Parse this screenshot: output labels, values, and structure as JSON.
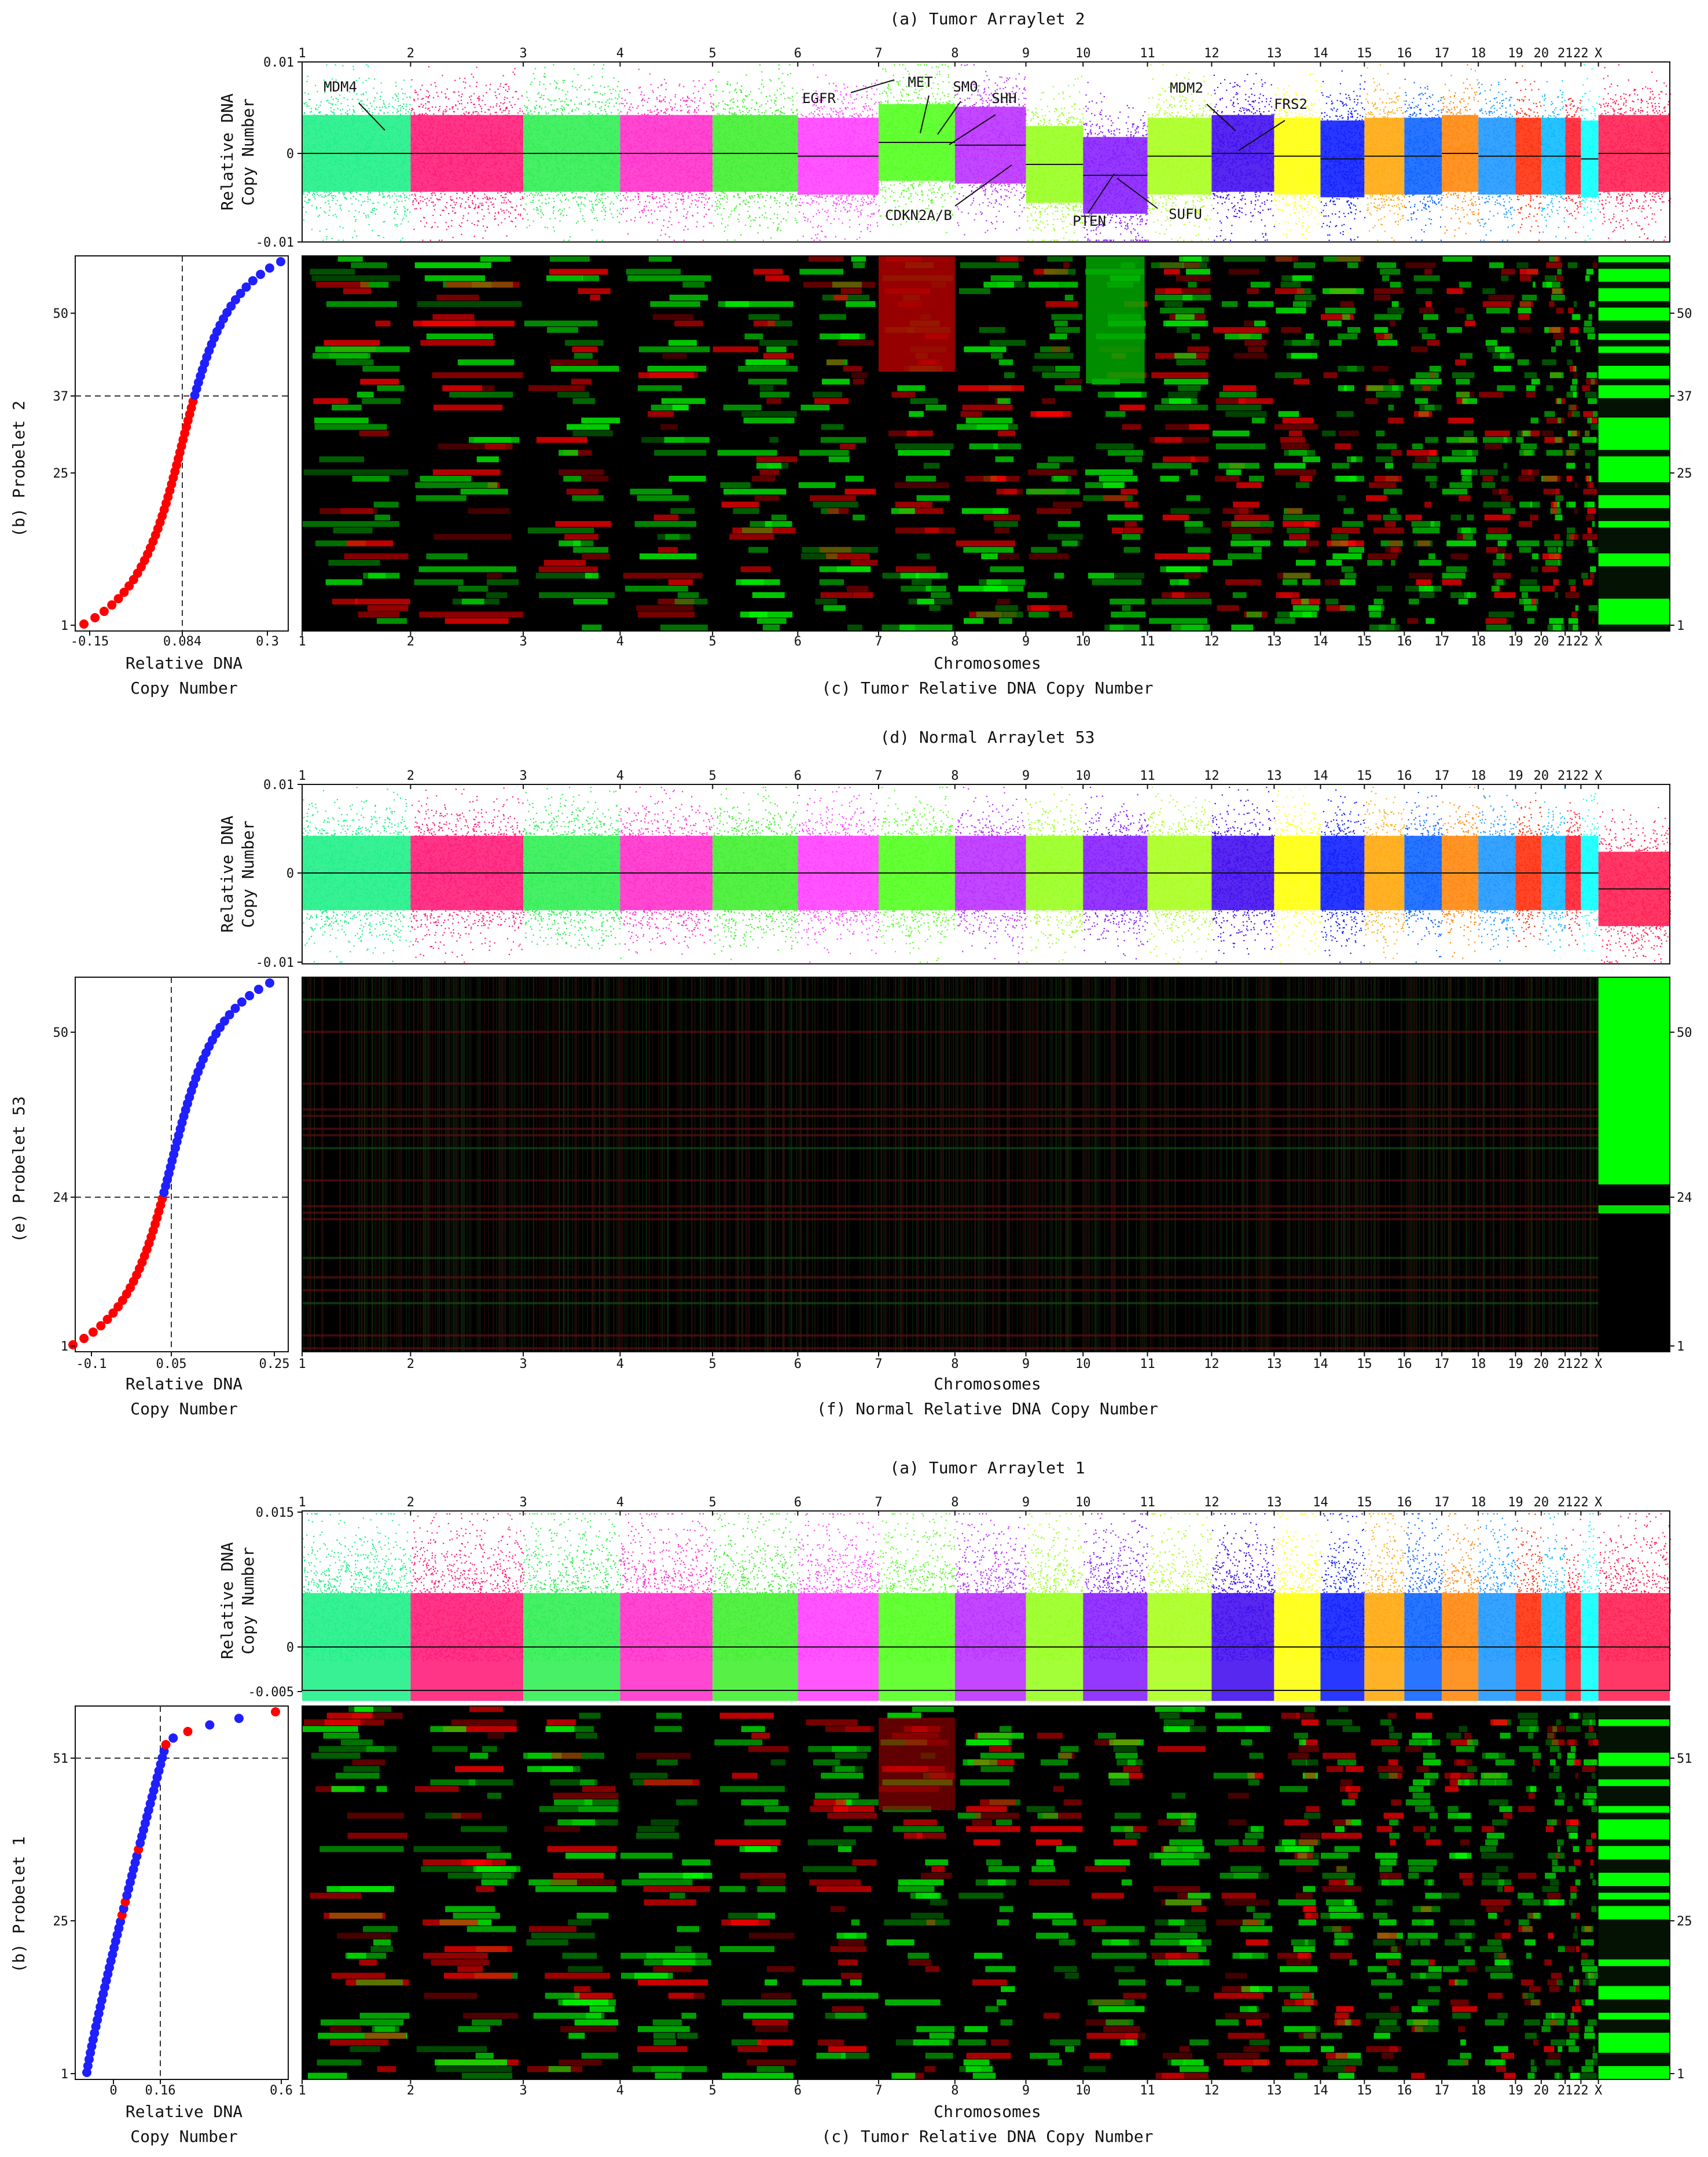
{
  "chromosomes": [
    "1",
    "2",
    "3",
    "4",
    "5",
    "6",
    "7",
    "8",
    "9",
    "10",
    "11",
    "12",
    "13",
    "14",
    "15",
    "16",
    "17",
    "18",
    "19",
    "20",
    "21",
    "22",
    "X"
  ],
  "chromosome_colors": [
    "#22f08a",
    "#ff1f7a",
    "#33ee55",
    "#ff33cc",
    "#44ee33",
    "#ff44ff",
    "#55ff22",
    "#bb33ff",
    "#99ff22",
    "#8822ff",
    "#aaff22",
    "#4411ee",
    "#ffff11",
    "#1122ff",
    "#ffaa11",
    "#1166ff",
    "#ff8811",
    "#2299ff",
    "#ff3311",
    "#11bbff",
    "#ff2233",
    "#11ffff",
    "#ff2255"
  ],
  "heatmap_colors": {
    "negative": "#00ff00",
    "positive": "#ff0000",
    "zero": "#000000"
  },
  "panels": [
    {
      "arraylet_title": "(a) Tumor Arraylet 2",
      "ylabel": "Relative DNA\nCopy Number",
      "yticks": [
        "0.01",
        "0",
        "-0.01"
      ],
      "annotations": [
        "MDM4",
        "EGFR",
        "MET",
        "SMO",
        "SHH",
        "CDKN2A/B",
        "PTEN",
        "SUFU",
        "MDM2",
        "FRS2"
      ],
      "probelet_label": "(b) Probelet 2",
      "probelet_yticks": [
        "50",
        "37",
        "25",
        "1"
      ],
      "probelet_xticks": [
        "-0.15",
        "0.084",
        "0.3"
      ],
      "probelet_xlabel": "Relative DNA\nCopy Number",
      "heatmap_rticks": [
        "50",
        "37",
        "25",
        "1"
      ],
      "heatmap_xlabel": "Chromosomes",
      "heatmap_title": "(c) Tumor Relative DNA Copy Number"
    },
    {
      "arraylet_title": "(d) Normal Arraylet 53",
      "ylabel": "Relative DNA\nCopy Number",
      "yticks": [
        "0.01",
        "0",
        "-0.01"
      ],
      "annotations": [],
      "probelet_label": "(e) Probelet 53",
      "probelet_yticks": [
        "50",
        "24",
        "1"
      ],
      "probelet_xticks": [
        "-0.1",
        "0.05",
        "0.25"
      ],
      "probelet_xlabel": "Relative DNA\nCopy Number",
      "heatmap_rticks": [
        "50",
        "24",
        "1"
      ],
      "heatmap_xlabel": "Chromosomes",
      "heatmap_title": "(f) Normal Relative DNA Copy Number"
    },
    {
      "arraylet_title": "(a) Tumor Arraylet 1",
      "ylabel": "Relative DNA\nCopy Number",
      "yticks": [
        "0.015",
        "0",
        "-0.005"
      ],
      "annotations": [],
      "probelet_label": "(b) Probelet 1",
      "probelet_yticks": [
        "51",
        "25",
        "1"
      ],
      "probelet_xticks": [
        "0",
        "0.16",
        "0.6"
      ],
      "probelet_xlabel": "Relative DNA\nCopy Number",
      "heatmap_rticks": [
        "51",
        "25",
        "1"
      ],
      "heatmap_xlabel": "Chromosomes",
      "heatmap_title": "(c) Tumor Relative DNA Copy Number"
    }
  ],
  "chart_data": [
    {
      "type": "scatter",
      "title": "(a) Tumor Arraylet 2",
      "ylabel": "Relative DNA Copy Number",
      "ylim": [
        -0.01,
        0.01
      ],
      "x_categories": [
        "1",
        "2",
        "3",
        "4",
        "5",
        "6",
        "7",
        "8",
        "9",
        "10",
        "11",
        "12",
        "13",
        "14",
        "15",
        "16",
        "17",
        "18",
        "19",
        "20",
        "21",
        "22",
        "X"
      ],
      "segment_mean": [
        0.0,
        0.0,
        0.0,
        0.0,
        0.0,
        -0.0005,
        0.002,
        0.0015,
        -0.002,
        -0.004,
        -0.0005,
        0.0,
        -0.0005,
        -0.001,
        -0.0005,
        -0.0005,
        0.0,
        -0.0005,
        -0.0005,
        -0.0005,
        -0.0005,
        -0.001,
        0.0
      ],
      "annotations": [
        "MDM4",
        "EGFR",
        "MET",
        "SMO",
        "SHH",
        "CDKN2A/B",
        "PTEN",
        "SUFU",
        "MDM2",
        "FRS2"
      ]
    },
    {
      "type": "scatter",
      "title": "(b) Probelet 2",
      "xlabel": "Relative DNA Copy Number",
      "ylabel": "(b) Probelet 2",
      "xlim": [
        -0.15,
        0.3
      ],
      "ylim": [
        1,
        58
      ],
      "threshold_x": 0.084,
      "threshold_y": 37,
      "sorted_values_low_to_high": [
        -0.15,
        0.35
      ]
    },
    {
      "type": "heatmap",
      "title": "(c) Tumor Relative DNA Copy Number",
      "xlabel": "Chromosomes",
      "rows": 58,
      "row_ticks": [
        50,
        37,
        25,
        1
      ]
    },
    {
      "type": "scatter",
      "title": "(d) Normal Arraylet 53",
      "ylabel": "Relative DNA Copy Number",
      "ylim": [
        -0.01,
        0.01
      ],
      "x_categories": [
        "1",
        "2",
        "3",
        "4",
        "5",
        "6",
        "7",
        "8",
        "9",
        "10",
        "11",
        "12",
        "13",
        "14",
        "15",
        "16",
        "17",
        "18",
        "19",
        "20",
        "21",
        "22",
        "X"
      ],
      "segment_mean": [
        0,
        0,
        0,
        0,
        0,
        0,
        0,
        0,
        0,
        0,
        0,
        0,
        0,
        0,
        0,
        0,
        0,
        0,
        0,
        0,
        0,
        0,
        -0.003
      ]
    },
    {
      "type": "scatter",
      "title": "(e) Probelet 53",
      "xlabel": "Relative DNA Copy Number",
      "ylabel": "(e) Probelet 53",
      "xlim": [
        -0.1,
        0.25
      ],
      "ylim": [
        1,
        58
      ],
      "threshold_x": 0.05,
      "threshold_y": 24
    },
    {
      "type": "heatmap",
      "title": "(f) Normal Relative DNA Copy Number",
      "xlabel": "Chromosomes",
      "rows": 58,
      "row_ticks": [
        50,
        24,
        1
      ]
    },
    {
      "type": "scatter",
      "title": "(a) Tumor Arraylet 1",
      "ylabel": "Relative DNA Copy Number",
      "ylim": [
        -0.005,
        0.015
      ],
      "x_categories": [
        "1",
        "2",
        "3",
        "4",
        "5",
        "6",
        "7",
        "8",
        "9",
        "10",
        "11",
        "12",
        "13",
        "14",
        "15",
        "16",
        "17",
        "18",
        "19",
        "20",
        "21",
        "22",
        "X"
      ]
    },
    {
      "type": "scatter",
      "title": "(b) Probelet 1",
      "xlabel": "Relative DNA Copy Number",
      "ylabel": "(b) Probelet 1",
      "xlim": [
        -0.1,
        0.6
      ],
      "ylim": [
        1,
        56
      ],
      "threshold_x": 0.16,
      "threshold_y": 51
    },
    {
      "type": "heatmap",
      "title": "(c) Tumor Relative DNA Copy Number",
      "xlabel": "Chromosomes",
      "rows": 56,
      "row_ticks": [
        51,
        25,
        1
      ]
    }
  ]
}
